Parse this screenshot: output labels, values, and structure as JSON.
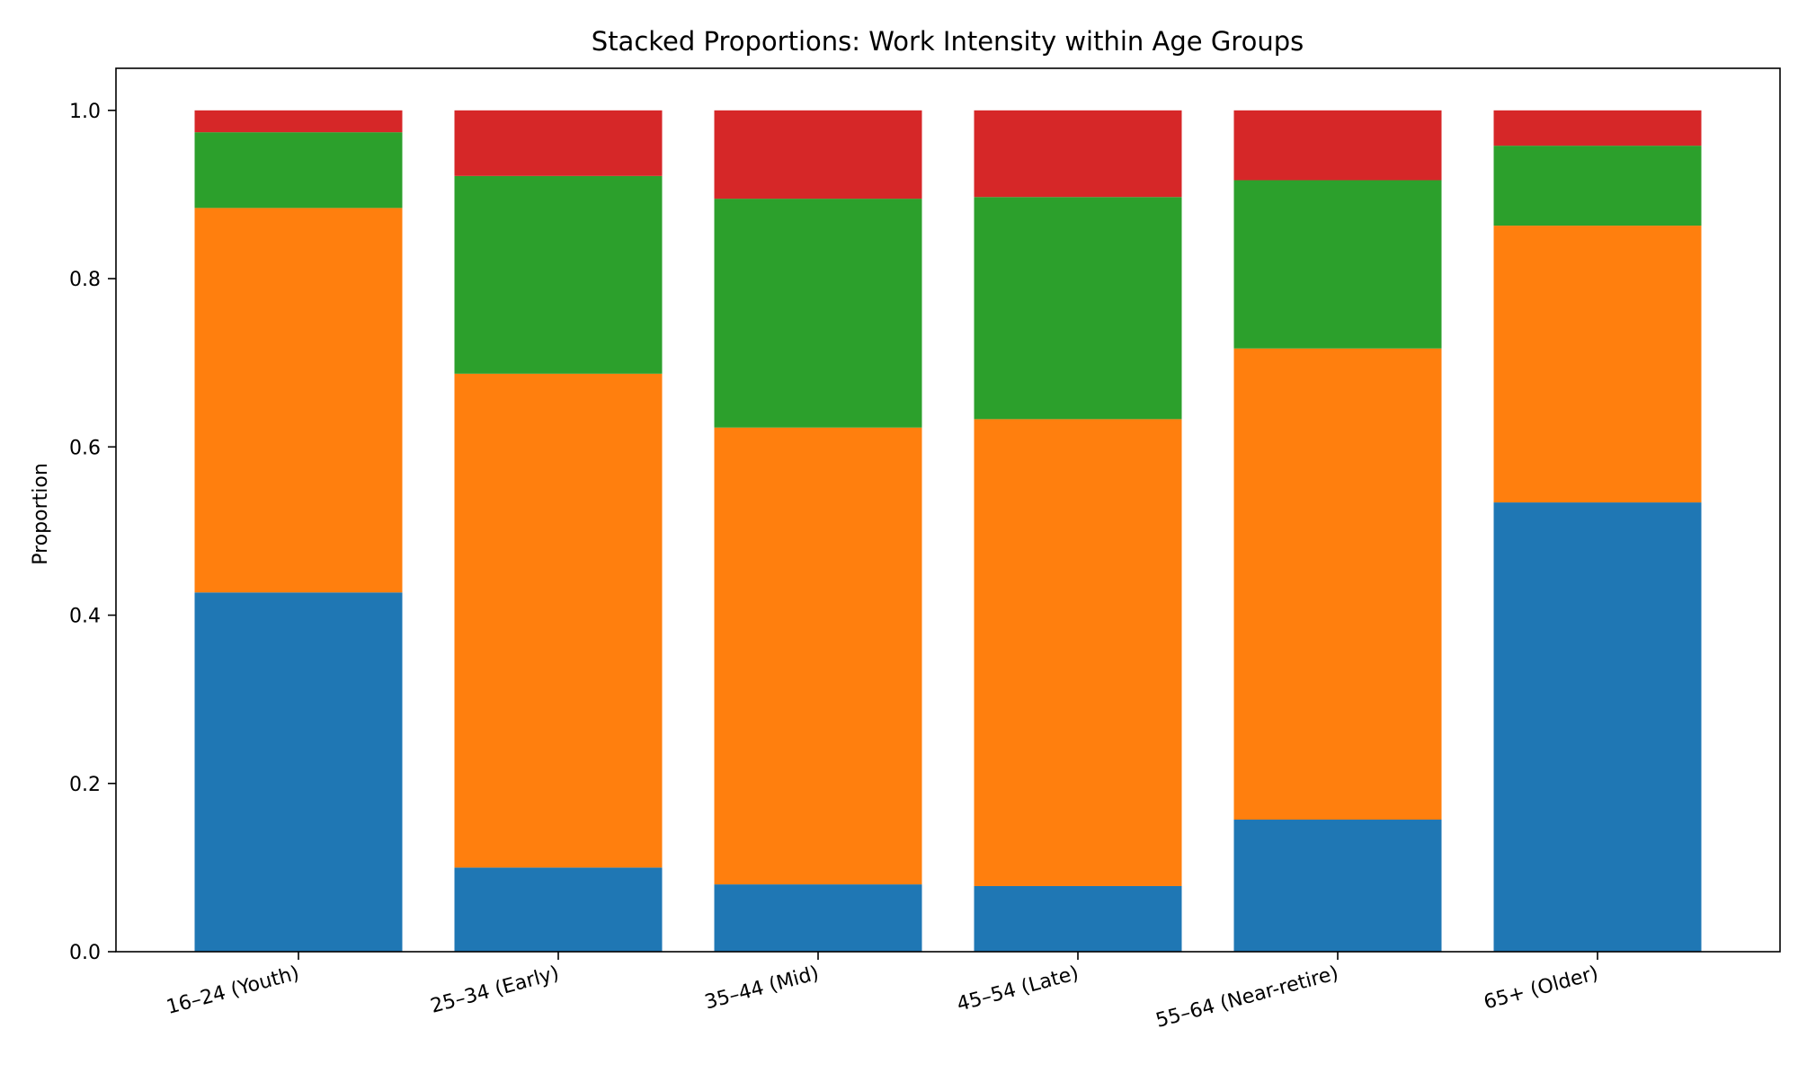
{
  "chart_data": {
    "type": "bar",
    "stacked": true,
    "title": "Stacked Proportions: Work Intensity within Age Groups",
    "xlabel": "",
    "ylabel": "Proportion",
    "ylim": [
      0,
      1.05
    ],
    "yticks": [
      "0.0",
      "0.2",
      "0.4",
      "0.6",
      "0.8",
      "1.0"
    ],
    "grid": false,
    "legend": "none",
    "categories": [
      "16–24 (Youth)",
      "25–34 (Early)",
      "35–44 (Mid)",
      "45–54 (Late)",
      "55–64 (Near-retire)",
      "65+ (Older)"
    ],
    "series": [
      {
        "color": "#1f77b4",
        "values": [
          0.427,
          0.1,
          0.08,
          0.078,
          0.157,
          0.534
        ]
      },
      {
        "color": "#ff7f0e",
        "values": [
          0.457,
          0.587,
          0.543,
          0.555,
          0.56,
          0.329
        ]
      },
      {
        "color": "#2ca02c",
        "values": [
          0.09,
          0.235,
          0.272,
          0.264,
          0.2,
          0.095
        ]
      },
      {
        "color": "#d62728",
        "values": [
          0.026,
          0.078,
          0.105,
          0.103,
          0.083,
          0.042
        ]
      }
    ]
  }
}
